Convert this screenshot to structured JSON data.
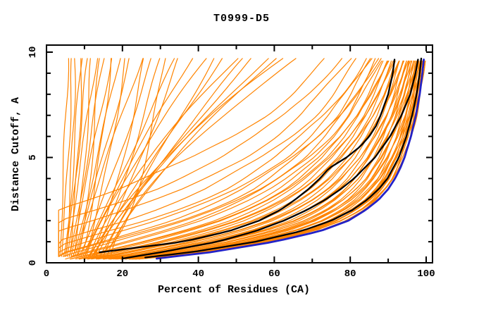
{
  "chart_data": {
    "type": "line",
    "title": "T0999-D5",
    "xlabel": "Percent of Residues (CA)",
    "ylabel": "Distance Cutoff, A",
    "xlim": [
      0,
      101.7
    ],
    "ylim": [
      0,
      10.33
    ],
    "x_major_ticks": [
      0,
      20,
      40,
      60,
      80,
      100
    ],
    "x_minor_ticks": [
      10,
      30,
      50,
      70,
      90
    ],
    "y_major_ticks": [
      0,
      5,
      10
    ],
    "y_minor_ticks": [
      1,
      2,
      3,
      4,
      6,
      7,
      8,
      9
    ],
    "grid": false,
    "legend": "none",
    "cutoff_plotted_range": [
      0.2,
      9.7
    ],
    "colors": {
      "model_orange": "#ff8400",
      "model_black": "#000000",
      "model_blue": "#2222c8",
      "frame": "#000000",
      "background": "#ffffff"
    },
    "highlighted_models": [
      {
        "name": "black-model-upper",
        "color": "model_black",
        "width": 2.3,
        "points_cutoff_percent": [
          [
            0.5,
            14
          ],
          [
            1,
            36
          ],
          [
            1.5,
            48
          ],
          [
            2,
            56
          ],
          [
            2.5,
            61.5
          ],
          [
            3,
            65.5
          ],
          [
            3.5,
            69
          ],
          [
            4,
            72
          ],
          [
            4.5,
            74.5
          ],
          [
            5,
            79
          ],
          [
            5.5,
            82.5
          ],
          [
            6,
            85
          ],
          [
            6.5,
            86.8
          ],
          [
            7,
            88
          ],
          [
            8,
            90
          ],
          [
            9,
            91.2
          ],
          [
            9.7,
            91.7
          ]
        ]
      },
      {
        "name": "black-model-middle",
        "color": "model_black",
        "width": 2.3,
        "points_cutoff_percent": [
          [
            0.2,
            20
          ],
          [
            0.5,
            30
          ],
          [
            1,
            45
          ],
          [
            1.5,
            55
          ],
          [
            2,
            62.5
          ],
          [
            2.5,
            68.5
          ],
          [
            3,
            73.5
          ],
          [
            3.5,
            77.5
          ],
          [
            4,
            81
          ],
          [
            5,
            86.5
          ],
          [
            6,
            90.5
          ],
          [
            7,
            93.5
          ],
          [
            8,
            95.8
          ],
          [
            9,
            97.2
          ],
          [
            9.7,
            97.9
          ]
        ]
      },
      {
        "name": "black-model-lower",
        "color": "model_black",
        "width": 2.3,
        "points_cutoff_percent": [
          [
            0.25,
            26
          ],
          [
            0.5,
            38
          ],
          [
            1,
            55
          ],
          [
            1.5,
            67
          ],
          [
            2,
            75
          ],
          [
            2.5,
            80.5
          ],
          [
            3,
            84.5
          ],
          [
            3.5,
            87.5
          ],
          [
            4,
            89.8
          ],
          [
            5,
            92.8
          ],
          [
            6,
            94.8
          ],
          [
            7,
            96.3
          ],
          [
            8,
            97.5
          ],
          [
            9,
            98.3
          ],
          [
            9.7,
            98.7
          ]
        ]
      },
      {
        "name": "blue-best-model",
        "color": "model_blue",
        "width": 2.8,
        "points_cutoff_percent": [
          [
            0.2,
            29
          ],
          [
            0.5,
            43
          ],
          [
            1,
            60
          ],
          [
            1.5,
            72
          ],
          [
            2,
            79.5
          ],
          [
            2.5,
            84
          ],
          [
            3,
            87.5
          ],
          [
            3.5,
            90
          ],
          [
            4,
            91.8
          ],
          [
            4.5,
            93.2
          ],
          [
            5,
            94.3
          ],
          [
            6,
            96
          ],
          [
            7,
            97.3
          ],
          [
            8,
            98.3
          ],
          [
            9,
            99
          ],
          [
            9.7,
            99.4
          ]
        ]
      }
    ],
    "orange_bundle": {
      "name": "server-model-bundle",
      "color": "model_orange",
      "width": 1.2,
      "count": 56,
      "lower_envelope_cutoff_percent": [
        [
          0.15,
          22
        ],
        [
          0.3,
          33
        ],
        [
          0.5,
          42
        ],
        [
          1,
          59
        ],
        [
          1.5,
          71
        ],
        [
          2,
          78.5
        ],
        [
          2.5,
          83.5
        ],
        [
          3,
          87
        ],
        [
          3.5,
          89.5
        ],
        [
          4,
          91.5
        ],
        [
          5,
          94
        ],
        [
          6,
          95.8
        ],
        [
          7,
          97.2
        ],
        [
          8,
          98.3
        ],
        [
          9,
          99.2
        ],
        [
          9.7,
          99.8
        ]
      ],
      "upper_envelope_cutoff_percent": [
        [
          0.15,
          4
        ],
        [
          0.3,
          7
        ],
        [
          0.5,
          11
        ],
        [
          1,
          22
        ],
        [
          1.5,
          32
        ],
        [
          2,
          41
        ],
        [
          2.5,
          48
        ],
        [
          3,
          54
        ],
        [
          3.5,
          59
        ],
        [
          4,
          63
        ],
        [
          5,
          70
        ],
        [
          6,
          75.5
        ],
        [
          7,
          80
        ],
        [
          8,
          83.5
        ],
        [
          9,
          86.5
        ],
        [
          9.7,
          88.5
        ]
      ],
      "offsets": [
        1,
        0.98,
        0.96,
        0.94,
        0.92,
        0.9,
        0.88,
        0.86,
        0.84,
        0.82,
        0.8,
        0.77,
        0.74,
        0.71,
        0.68,
        0.65,
        0.62,
        0.59,
        0.56,
        0.53,
        0.5,
        0.47,
        0.44,
        0.41,
        0.38,
        0.35,
        0.32,
        0.29,
        0.26,
        0.23,
        0.2,
        0.17,
        0.14,
        0.11,
        0.09,
        0.07,
        0.05,
        0.03,
        0.02,
        0.01,
        0,
        0.955,
        0.87,
        0.755,
        0.63,
        0.45,
        -0.05,
        -0.1,
        -0.16,
        -0.22,
        -0.3,
        -0.4,
        -0.55,
        -0.75,
        -1.0,
        -1.3
      ]
    },
    "orange_fan": {
      "name": "outlier-model-fan",
      "color": "model_orange",
      "width": 1.2,
      "curves_bottom_top_shape": [
        [
          3.5,
          5.5,
          0.8
        ],
        [
          4,
          7,
          0.9
        ],
        [
          4.5,
          9,
          0.7
        ],
        [
          5,
          7.5,
          0.6
        ],
        [
          5,
          11,
          0.9
        ],
        [
          5.5,
          13,
          1
        ],
        [
          6,
          9.5,
          0.7
        ],
        [
          6,
          15,
          0.9
        ],
        [
          6.5,
          17,
          1
        ],
        [
          7,
          12,
          0.7
        ],
        [
          7,
          19,
          0.9
        ],
        [
          7.5,
          22,
          1
        ],
        [
          8,
          14,
          0.6
        ],
        [
          8,
          25,
          1.1
        ],
        [
          8.5,
          28,
          0.9
        ],
        [
          9,
          31,
          0.35
        ],
        [
          9,
          17,
          0.7
        ],
        [
          9.5,
          34,
          1
        ],
        [
          10,
          38,
          1.1
        ],
        [
          10,
          21,
          0.8
        ],
        [
          10.5,
          42,
          1.2
        ],
        [
          11,
          46,
          1
        ],
        [
          11,
          26,
          0.7
        ],
        [
          11.5,
          50,
          1.3
        ],
        [
          12,
          54,
          1.1
        ],
        [
          12,
          30,
          0.8
        ],
        [
          12.5,
          58,
          1.2
        ],
        [
          13,
          35,
          0.9
        ],
        [
          13,
          62,
          1.4
        ],
        [
          14,
          44,
          1
        ],
        [
          15,
          52,
          1.2
        ],
        [
          16,
          60,
          1.3
        ],
        [
          17,
          66,
          1.5
        ]
      ]
    }
  }
}
